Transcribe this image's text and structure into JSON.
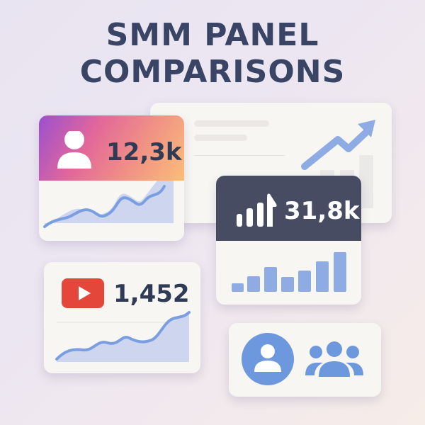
{
  "title": {
    "line1": "SMM PANEL",
    "line2": "COMPARISONS"
  },
  "cards": {
    "instagram": {
      "value": "12,3k",
      "icon": "user-icon",
      "gradient": [
        "#9b4fd0",
        "#e96a8c",
        "#fbbd78"
      ]
    },
    "tiktok": {
      "value": "31,8k",
      "icon": "signal-bars-icon",
      "header_color": "#474c63"
    },
    "youtube": {
      "value": "1,452",
      "icon": "youtube-play-icon",
      "icon_color": "#e4463a"
    },
    "audience": {
      "icons": [
        "user-circle-icon",
        "users-group-icon"
      ]
    }
  },
  "colors": {
    "accent": "#7b9ee0",
    "text": "#2f3b55"
  }
}
